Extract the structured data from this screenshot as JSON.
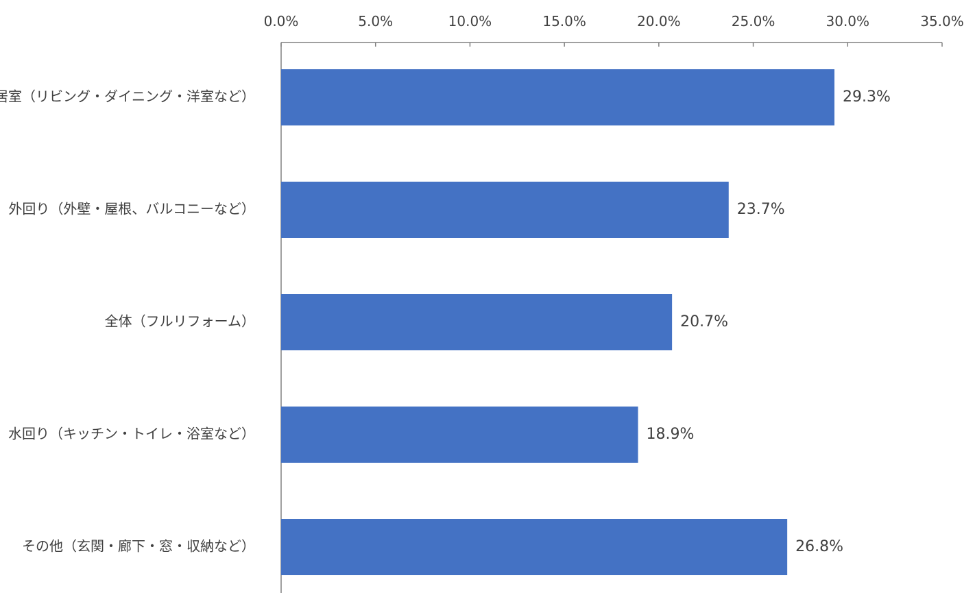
{
  "chart_data": {
    "type": "bar",
    "orientation": "horizontal",
    "title": "",
    "xlabel": "",
    "ylabel": "",
    "categories": [
      "居室（リビング・ダイニング・洋室など）",
      "外回り（外壁・屋根、バルコニーなど）",
      "全体（フルリフォーム）",
      "水回り（キッチン・トイレ・浴室など）",
      "その他（玄関・廊下・窓・収納など）"
    ],
    "values": [
      29.3,
      23.7,
      20.7,
      18.9,
      26.8
    ],
    "data_labels": [
      "29.3%",
      "23.7%",
      "20.7%",
      "18.9%",
      "26.8%"
    ],
    "xlim": [
      0,
      35
    ],
    "x_ticks": [
      0,
      5,
      10,
      15,
      20,
      25,
      30,
      35
    ],
    "x_tick_labels": [
      "0.0%",
      "5.0%",
      "10.0%",
      "15.0%",
      "20.0%",
      "25.0%",
      "30.0%",
      "35.0%"
    ],
    "axis_position": "top",
    "grid": false,
    "legend": "none",
    "bar_color": "#4472C4",
    "text_color": "#404040",
    "axis_color": "#808080"
  }
}
